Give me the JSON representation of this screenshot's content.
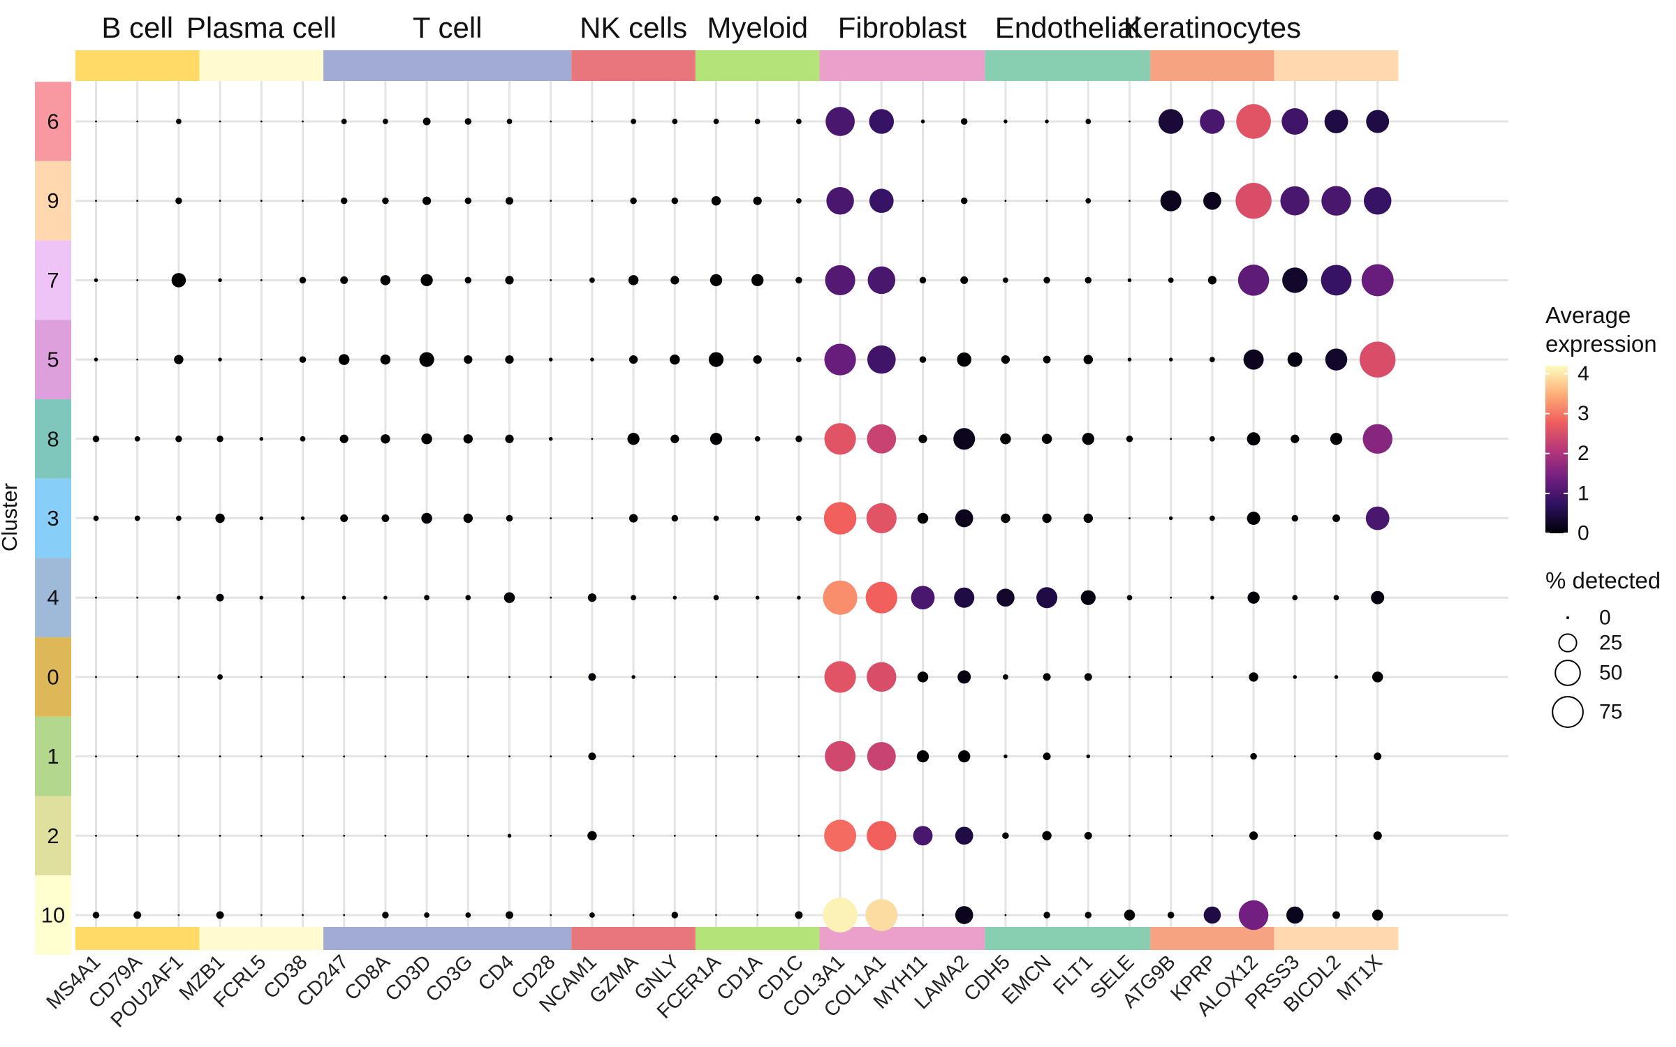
{
  "chart_data": {
    "type": "dotplot",
    "ylabel": "Cluster",
    "groups": [
      {
        "name": "B cell",
        "color": "#FFDA66",
        "genes": [
          "MS4A1",
          "CD79A",
          "POU2AF1"
        ]
      },
      {
        "name": "Plasma cell",
        "color": "#FFFBCF",
        "genes": [
          "MZB1",
          "FCRL5",
          "CD38"
        ]
      },
      {
        "name": "T cell",
        "color": "#A2ABD3",
        "genes": [
          "CD247",
          "CD8A",
          "CD3D",
          "CD3G",
          "CD4",
          "CD28"
        ]
      },
      {
        "name": "NK cells",
        "color": "#E8767C",
        "genes": [
          "NCAM1",
          "GZMA",
          "GNLY"
        ]
      },
      {
        "name": "Myeloid",
        "color": "#B4E37A",
        "genes": [
          "FCER1A",
          "CD1A",
          "CD1C"
        ]
      },
      {
        "name": "Fibroblast",
        "color": "#EBA0CC",
        "genes": [
          "COL3A1",
          "COL1A1",
          "MYH11",
          "LAMA2"
        ]
      },
      {
        "name": "Endothelial",
        "color": "#88CEB0",
        "genes": [
          "CDH5",
          "EMCN",
          "FLT1",
          "SELE"
        ]
      },
      {
        "name": "Keratinocytes",
        "color": "#F6A382",
        "genes": [
          "ATG9B",
          "KPRP",
          "ALOX12"
        ]
      },
      {
        "name": "",
        "color": "#FFD8AF",
        "genes": [
          "PRSS3",
          "BICDL2",
          "MT1X"
        ]
      }
    ],
    "genes": [
      "MS4A1",
      "CD79A",
      "POU2AF1",
      "MZB1",
      "FCRL5",
      "CD38",
      "CD247",
      "CD8A",
      "CD3D",
      "CD3G",
      "CD4",
      "CD28",
      "NCAM1",
      "GZMA",
      "GNLY",
      "FCER1A",
      "CD1A",
      "CD1C",
      "COL3A1",
      "COL1A1",
      "MYH11",
      "LAMA2",
      "CDH5",
      "EMCN",
      "FLT1",
      "SELE",
      "ATG9B",
      "KPRP",
      "ALOX12",
      "PRSS3",
      "BICDL2",
      "MT1X"
    ],
    "clusters": [
      {
        "label": "6",
        "color": "#F899A2"
      },
      {
        "label": "9",
        "color": "#FFD8AF"
      },
      {
        "label": "7",
        "color": "#EEC4F6"
      },
      {
        "label": "5",
        "color": "#DDA0DD"
      },
      {
        "label": "8",
        "color": "#7FC6BC"
      },
      {
        "label": "3",
        "color": "#87CFF8"
      },
      {
        "label": "4",
        "color": "#9EBAD8"
      },
      {
        "label": "0",
        "color": "#DEB758"
      },
      {
        "label": "1",
        "color": "#B3D78C"
      },
      {
        "label": "2",
        "color": "#DFDF9E"
      },
      {
        "label": "10",
        "color": "#FFFFD0"
      }
    ],
    "pct_detected": [
      [
        0,
        0,
        2,
        0,
        0,
        0,
        2,
        2,
        4,
        3,
        2,
        0,
        0,
        2,
        2,
        2,
        2,
        2,
        58,
        42,
        1,
        3,
        1,
        1,
        2,
        0,
        42,
        42,
        82,
        48,
        38,
        36
      ],
      [
        0,
        0,
        3,
        0,
        0,
        0,
        3,
        3,
        5,
        3,
        4,
        0,
        0,
        3,
        3,
        6,
        5,
        2,
        52,
        40,
        0,
        3,
        0,
        0,
        2,
        0,
        30,
        22,
        88,
        58,
        60,
        52
      ],
      [
        1,
        0,
        14,
        1,
        0,
        3,
        4,
        7,
        10,
        3,
        5,
        0,
        2,
        7,
        5,
        10,
        10,
        3,
        62,
        52,
        3,
        4,
        2,
        3,
        3,
        1,
        2,
        5,
        66,
        44,
        64,
        70
      ],
      [
        1,
        0,
        6,
        1,
        0,
        3,
        8,
        7,
        15,
        5,
        5,
        1,
        1,
        5,
        7,
        15,
        5,
        2,
        68,
        55,
        3,
        14,
        5,
        4,
        6,
        1,
        1,
        2,
        28,
        15,
        33,
        88
      ],
      [
        3,
        2,
        3,
        3,
        1,
        2,
        5,
        6,
        8,
        6,
        5,
        1,
        0,
        10,
        5,
        10,
        2,
        3,
        68,
        58,
        5,
        32,
        8,
        7,
        10,
        3,
        0,
        2,
        12,
        5,
        10,
        60
      ],
      [
        2,
        2,
        2,
        6,
        1,
        1,
        4,
        4,
        8,
        6,
        3,
        0,
        0,
        5,
        3,
        2,
        2,
        2,
        72,
        62,
        8,
        22,
        6,
        6,
        6,
        0,
        1,
        2,
        12,
        3,
        4,
        38
      ],
      [
        0,
        0,
        1,
        4,
        1,
        1,
        1,
        1,
        2,
        2,
        8,
        0,
        5,
        2,
        1,
        2,
        1,
        1,
        80,
        68,
        38,
        28,
        22,
        30,
        15,
        2,
        0,
        1,
        10,
        2,
        2,
        12
      ],
      [
        0,
        0,
        0,
        2,
        0,
        0,
        0,
        0,
        0,
        0,
        0,
        0,
        4,
        1,
        0,
        0,
        0,
        0,
        68,
        60,
        8,
        12,
        2,
        4,
        4,
        0,
        0,
        0,
        6,
        1,
        1,
        8
      ],
      [
        0,
        0,
        0,
        0,
        0,
        0,
        0,
        0,
        0,
        0,
        0,
        0,
        4,
        0,
        0,
        0,
        0,
        0,
        64,
        56,
        10,
        10,
        1,
        4,
        1,
        0,
        0,
        0,
        3,
        0,
        0,
        4
      ],
      [
        0,
        0,
        0,
        0,
        0,
        0,
        0,
        0,
        0,
        0,
        1,
        0,
        6,
        0,
        0,
        0,
        0,
        0,
        70,
        60,
        26,
        22,
        3,
        6,
        4,
        0,
        0,
        0,
        5,
        0,
        0,
        5
      ],
      [
        3,
        4,
        0,
        4,
        0,
        0,
        0,
        3,
        2,
        2,
        4,
        0,
        2,
        0,
        3,
        0,
        0,
        4,
        82,
        70,
        0,
        22,
        0,
        3,
        3,
        8,
        3,
        20,
        60,
        20,
        4,
        8
      ]
    ],
    "avg_expression": [
      [
        0,
        0,
        0,
        0,
        0,
        0,
        0,
        0,
        0,
        0,
        0,
        0,
        0,
        0,
        0,
        0,
        0,
        0,
        1.0,
        0.8,
        0,
        0,
        0,
        0,
        0,
        0,
        0.4,
        1.0,
        2.6,
        0.9,
        0.5,
        0.5
      ],
      [
        0,
        0,
        0,
        0,
        0,
        0,
        0,
        0,
        0,
        0,
        0,
        0,
        0,
        0,
        0,
        0,
        0,
        0,
        1.0,
        0.8,
        0,
        0,
        0,
        0,
        0,
        0,
        0.2,
        0.2,
        2.5,
        1.0,
        1.0,
        0.8
      ],
      [
        0,
        0,
        0,
        0,
        0,
        0,
        0,
        0,
        0,
        0,
        0,
        0,
        0,
        0,
        0,
        0,
        0,
        0,
        1.1,
        1.0,
        0,
        0,
        0,
        0,
        0,
        0,
        0,
        0,
        1.2,
        0.3,
        0.8,
        1.3
      ],
      [
        0,
        0,
        0,
        0,
        0,
        0,
        0,
        0,
        0,
        0,
        0,
        0,
        0,
        0,
        0,
        0,
        0,
        0,
        1.3,
        0.9,
        0,
        0,
        0,
        0,
        0,
        0,
        0,
        0,
        0.2,
        0.1,
        0.3,
        2.5
      ],
      [
        0,
        0,
        0,
        0,
        0,
        0,
        0,
        0,
        0,
        0,
        0,
        0,
        0,
        0,
        0,
        0,
        0,
        0,
        2.6,
        2.3,
        0,
        0.2,
        0,
        0,
        0,
        0,
        0,
        0,
        0,
        0,
        0,
        1.6
      ],
      [
        0,
        0,
        0,
        0,
        0,
        0,
        0,
        0,
        0,
        0,
        0,
        0,
        0,
        0,
        0,
        0,
        0,
        0,
        2.8,
        2.6,
        0,
        0.2,
        0,
        0,
        0,
        0,
        0,
        0,
        0,
        0,
        0,
        1.0
      ],
      [
        0,
        0,
        0,
        0,
        0,
        0,
        0,
        0,
        0,
        0,
        0,
        0,
        0,
        0,
        0,
        0,
        0,
        0,
        3.2,
        2.8,
        1.0,
        0.5,
        0.3,
        0.5,
        0.1,
        0,
        0,
        0,
        0,
        0,
        0,
        0.1
      ],
      [
        0,
        0,
        0,
        0,
        0,
        0,
        0,
        0,
        0,
        0,
        0,
        0,
        0,
        0,
        0,
        0,
        0,
        0,
        2.6,
        2.5,
        0,
        0.1,
        0,
        0,
        0,
        0,
        0,
        0,
        0,
        0,
        0,
        0
      ],
      [
        0,
        0,
        0,
        0,
        0,
        0,
        0,
        0,
        0,
        0,
        0,
        0,
        0,
        0,
        0,
        0,
        0,
        0,
        2.4,
        2.3,
        0,
        0,
        0,
        0,
        0,
        0,
        0,
        0,
        0,
        0,
        0,
        0
      ],
      [
        0,
        0,
        0,
        0,
        0,
        0,
        0,
        0,
        0,
        0,
        0,
        0,
        0,
        0,
        0,
        0,
        0,
        0,
        2.9,
        2.8,
        1.0,
        0.5,
        0,
        0,
        0,
        0,
        0,
        0,
        0,
        0,
        0,
        0
      ],
      [
        0,
        0,
        0,
        0,
        0,
        0,
        0,
        0,
        0,
        0,
        0,
        0,
        0,
        0,
        0,
        0,
        0,
        0,
        4.1,
        3.9,
        0,
        0.2,
        0,
        0,
        0,
        0,
        0,
        0.5,
        1.4,
        0.2,
        0,
        0
      ]
    ],
    "color_scale": {
      "title_lines": [
        "Average",
        "expression"
      ],
      "ticks": [
        0,
        1,
        2,
        3,
        4
      ],
      "range": [
        0,
        4.2
      ],
      "stops": [
        "#000004",
        "#2C115F",
        "#721F81",
        "#B73779",
        "#F1605D",
        "#FEB078",
        "#FCFDBF"
      ]
    },
    "size_scale": {
      "title": "% detected",
      "ticks": [
        0,
        25,
        50,
        75
      ],
      "max": 90
    },
    "legend_position": "right"
  }
}
